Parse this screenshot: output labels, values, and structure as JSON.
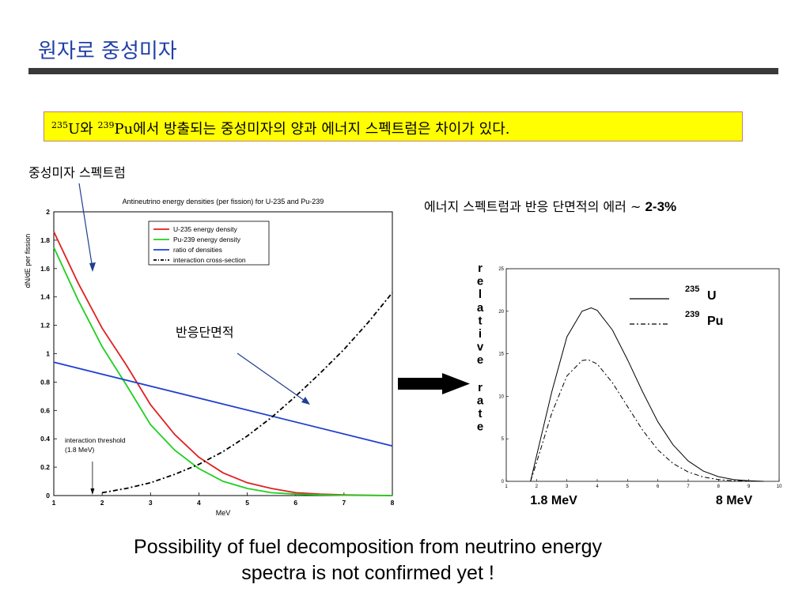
{
  "slide": {
    "title": "원자로 중성미자",
    "banner": {
      "sup1": "235",
      "part1": "U와 ",
      "sup2": "239",
      "part2": "Pu에서 방출되는 중성미자의 양과 에너지 스펙트럼은 차이가 있다."
    },
    "label_spectrum": "중성미자 스펙트럼",
    "label_cross": "반응단면적",
    "label_error_text": "에너지 스펙트럼과  반응 단면적의 에러 ~ ",
    "label_error_value": "2-3%",
    "caption_line1": "Possibility of fuel decomposition from neutrino energy",
    "caption_line2": "spectra is not confirmed yet !",
    "arrow_color": "#000000"
  },
  "chart_data": [
    {
      "type": "line",
      "title": "Antineutrino energy densities (per fission) for U-235 and Pu-239",
      "xlabel": "MeV",
      "ylabel": "dN/dE per fission",
      "xlim": [
        1,
        8
      ],
      "ylim": [
        0,
        2
      ],
      "xticks": [
        "1",
        "2",
        "3",
        "4",
        "5",
        "6",
        "7",
        "8"
      ],
      "yticks": [
        "0",
        "0.2",
        "0.4",
        "0.6",
        "0.8",
        "1",
        "1.2",
        "1.4",
        "1.6",
        "1.8",
        "2"
      ],
      "legend_position": "top-right",
      "annotation": {
        "line1": "interaction threshold",
        "line2": "(1.8 MeV)",
        "x": 1.8
      },
      "series": [
        {
          "name": "U-235 energy density",
          "color": "#e02020",
          "dash": "",
          "x": [
            1.0,
            1.5,
            2.0,
            2.5,
            3.0,
            3.5,
            4.0,
            4.5,
            5.0,
            5.5,
            6.0,
            6.5,
            7.0,
            7.5,
            8.0
          ],
          "y": [
            1.86,
            1.5,
            1.18,
            0.92,
            0.64,
            0.43,
            0.27,
            0.16,
            0.09,
            0.05,
            0.02,
            0.01,
            0.005,
            0.002,
            0.0
          ]
        },
        {
          "name": "Pu-239 energy density",
          "color": "#20d020",
          "dash": "",
          "x": [
            1.0,
            1.5,
            2.0,
            2.5,
            3.0,
            3.5,
            4.0,
            4.5,
            5.0,
            5.5,
            6.0,
            6.5,
            7.0,
            7.5,
            8.0
          ],
          "y": [
            1.75,
            1.38,
            1.05,
            0.78,
            0.5,
            0.32,
            0.19,
            0.1,
            0.05,
            0.02,
            0.01,
            0.005,
            0.002,
            0.001,
            0.0
          ]
        },
        {
          "name": "ratio of densities",
          "color": "#1f3fd0",
          "dash": "",
          "x": [
            1.0,
            8.0
          ],
          "y": [
            0.94,
            0.35
          ]
        },
        {
          "name": "interaction cross-section",
          "color": "#000000",
          "dash": "6,3,2,3",
          "x": [
            2.0,
            2.5,
            3.0,
            3.5,
            4.0,
            4.5,
            5.0,
            5.5,
            6.0,
            6.5,
            7.0,
            7.5,
            8.0
          ],
          "y": [
            0.02,
            0.05,
            0.09,
            0.15,
            0.22,
            0.31,
            0.42,
            0.55,
            0.7,
            0.86,
            1.03,
            1.22,
            1.43
          ]
        }
      ]
    },
    {
      "type": "line",
      "title": "",
      "ylabel": "relative rate",
      "xlim": [
        1,
        10
      ],
      "ylim": [
        0,
        25
      ],
      "xticks": [
        "1",
        "2",
        "3",
        "4",
        "5",
        "6",
        "7",
        "8",
        "9",
        "10"
      ],
      "yticks": [
        "0",
        "5",
        "10",
        "15",
        "20",
        "25"
      ],
      "bottom_labels": [
        "1.8 MeV",
        "8 MeV"
      ],
      "legend": [
        {
          "sup": "235",
          "name": "U",
          "dash": ""
        },
        {
          "sup": "239",
          "name": "Pu",
          "dash": "6,3,2,3"
        }
      ],
      "series": [
        {
          "name": "U",
          "color": "#000000",
          "dash": "",
          "x": [
            1.8,
            2.0,
            2.5,
            3.0,
            3.5,
            3.8,
            4.0,
            4.5,
            5.0,
            5.5,
            6.0,
            6.5,
            7.0,
            7.5,
            8.0,
            8.5,
            9.0,
            9.5
          ],
          "y": [
            0.0,
            3.0,
            10.5,
            17.0,
            20.0,
            20.4,
            20.1,
            17.8,
            14.3,
            10.5,
            7.0,
            4.3,
            2.4,
            1.2,
            0.55,
            0.2,
            0.07,
            0.0
          ]
        },
        {
          "name": "Pu",
          "color": "#000000",
          "dash": "6,3,2,3",
          "x": [
            1.8,
            2.0,
            2.5,
            3.0,
            3.5,
            3.7,
            4.0,
            4.5,
            5.0,
            5.5,
            6.0,
            6.5,
            7.0,
            7.5,
            8.0,
            8.5,
            9.0
          ],
          "y": [
            0.0,
            2.2,
            8.0,
            12.4,
            14.2,
            14.3,
            13.8,
            11.6,
            8.8,
            6.0,
            3.7,
            2.1,
            1.1,
            0.5,
            0.2,
            0.07,
            0.0
          ]
        }
      ]
    }
  ]
}
